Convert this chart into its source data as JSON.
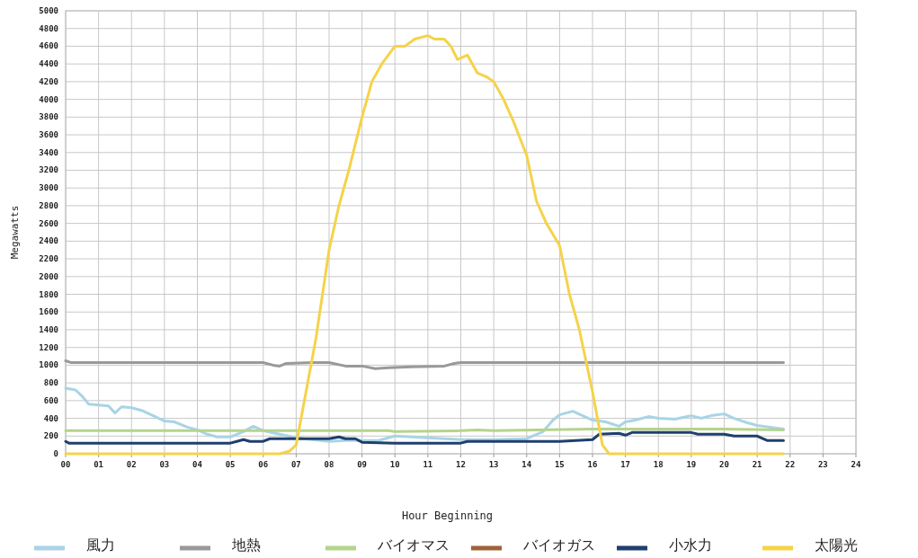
{
  "chart_data": {
    "type": "line",
    "xlabel": "Hour Beginning",
    "ylabel": "Megawatts",
    "xlim": [
      0,
      24
    ],
    "ylim": [
      0,
      5000
    ],
    "xticks": [
      {
        "value": 0,
        "label": "00"
      },
      {
        "value": 1,
        "label": "01"
      },
      {
        "value": 2,
        "label": "02"
      },
      {
        "value": 3,
        "label": "03"
      },
      {
        "value": 4,
        "label": "04"
      },
      {
        "value": 5,
        "label": "05"
      },
      {
        "value": 6,
        "label": "06"
      },
      {
        "value": 7,
        "label": "07"
      },
      {
        "value": 8,
        "label": "08"
      },
      {
        "value": 9,
        "label": "09"
      },
      {
        "value": 10,
        "label": "10"
      },
      {
        "value": 11,
        "label": "11"
      },
      {
        "value": 12,
        "label": "12"
      },
      {
        "value": 13,
        "label": "13"
      },
      {
        "value": 14,
        "label": "14"
      },
      {
        "value": 15,
        "label": "15"
      },
      {
        "value": 16,
        "label": "16"
      },
      {
        "value": 17,
        "label": "17"
      },
      {
        "value": 18,
        "label": "18"
      },
      {
        "value": 19,
        "label": "19"
      },
      {
        "value": 20,
        "label": "20"
      },
      {
        "value": 21,
        "label": "21"
      },
      {
        "value": 22,
        "label": "22"
      },
      {
        "value": 23,
        "label": "23"
      },
      {
        "value": 24,
        "label": "24"
      }
    ],
    "yticks": [
      0,
      200,
      400,
      600,
      800,
      1000,
      1200,
      1400,
      1600,
      1800,
      2000,
      2200,
      2400,
      2600,
      2800,
      3000,
      3200,
      3400,
      3600,
      3800,
      4000,
      4200,
      4400,
      4600,
      4800,
      5000
    ],
    "grid": true,
    "legend": "bottom",
    "marker": "none",
    "line_style": "solid",
    "series": [
      {
        "name": "風力",
        "color": "#a8d4e6",
        "x": [
          0,
          0.3,
          0.5,
          0.7,
          1,
          1.3,
          1.5,
          1.7,
          2,
          2.3,
          2.6,
          3,
          3.3,
          3.7,
          4,
          4.3,
          4.6,
          5,
          5.4,
          5.7,
          6,
          6.5,
          7,
          7.5,
          8,
          8.5,
          9,
          9.5,
          10,
          10.5,
          11,
          11.5,
          12,
          13,
          14,
          14.5,
          14.8,
          15,
          15.4,
          15.7,
          16,
          16.4,
          16.8,
          17,
          17.3,
          17.7,
          18,
          18.5,
          19,
          19.3,
          19.6,
          20,
          20.3,
          20.7,
          21,
          21.4,
          21.8
        ],
        "values": [
          740,
          720,
          650,
          560,
          550,
          540,
          460,
          530,
          520,
          490,
          440,
          370,
          360,
          300,
          270,
          220,
          190,
          190,
          250,
          310,
          260,
          220,
          180,
          160,
          140,
          150,
          150,
          150,
          200,
          190,
          180,
          170,
          160,
          160,
          170,
          250,
          380,
          440,
          480,
          430,
          380,
          360,
          310,
          360,
          380,
          420,
          400,
          390,
          430,
          400,
          430,
          450,
          400,
          350,
          320,
          300,
          280
        ]
      },
      {
        "name": "地熱",
        "color": "#999999",
        "x": [
          0,
          0.15,
          6,
          6.3,
          6.5,
          6.7,
          7.5,
          8,
          8.5,
          9,
          9.4,
          9.8,
          10.5,
          11.5,
          11.8,
          12,
          21.8
        ],
        "values": [
          1050,
          1030,
          1030,
          1000,
          990,
          1020,
          1030,
          1030,
          990,
          990,
          960,
          970,
          980,
          990,
          1020,
          1030,
          1030
        ]
      },
      {
        "name": "バイオマス",
        "color": "#b5d48c",
        "x": [
          0,
          9.8,
          10,
          12,
          12.5,
          13,
          16,
          20,
          21.8
        ],
        "values": [
          260,
          260,
          250,
          260,
          270,
          260,
          280,
          280,
          270
        ]
      },
      {
        "name": "バイオガス",
        "color": "#a0623a"
      },
      {
        "name": "小水力",
        "color": "#1f3f6e",
        "x": [
          0,
          0.1,
          5,
          5.2,
          5.4,
          5.6,
          6,
          6.2,
          8,
          8.3,
          8.5,
          8.8,
          9,
          10,
          12,
          12.2,
          15,
          15.5,
          16,
          16.2,
          16.8,
          17,
          17.2,
          19,
          19.2,
          20,
          20.3,
          21,
          21.3,
          21.8
        ],
        "values": [
          140,
          120,
          120,
          140,
          160,
          140,
          140,
          170,
          170,
          190,
          170,
          170,
          130,
          120,
          120,
          140,
          140,
          150,
          160,
          220,
          230,
          210,
          240,
          240,
          220,
          220,
          200,
          200,
          150,
          150
        ]
      },
      {
        "name": "太陽光",
        "color": "#f5d34a",
        "x": [
          0,
          6.5,
          6.8,
          7,
          7.3,
          7.6,
          8,
          8.3,
          8.6,
          9,
          9.3,
          9.6,
          10,
          10.3,
          10.6,
          11,
          11.2,
          11.5,
          11.7,
          11.9,
          12.2,
          12.5,
          12.8,
          13,
          13.3,
          13.6,
          14,
          14.3,
          14.6,
          15,
          15.3,
          15.6,
          16,
          16.3,
          16.5,
          21.8
        ],
        "values": [
          0,
          0,
          30,
          100,
          700,
          1300,
          2300,
          2800,
          3200,
          3800,
          4200,
          4400,
          4600,
          4600,
          4680,
          4720,
          4680,
          4680,
          4600,
          4450,
          4500,
          4300,
          4250,
          4200,
          4000,
          3750,
          3370,
          2850,
          2600,
          2350,
          1800,
          1400,
          700,
          100,
          0,
          0
        ]
      }
    ]
  }
}
